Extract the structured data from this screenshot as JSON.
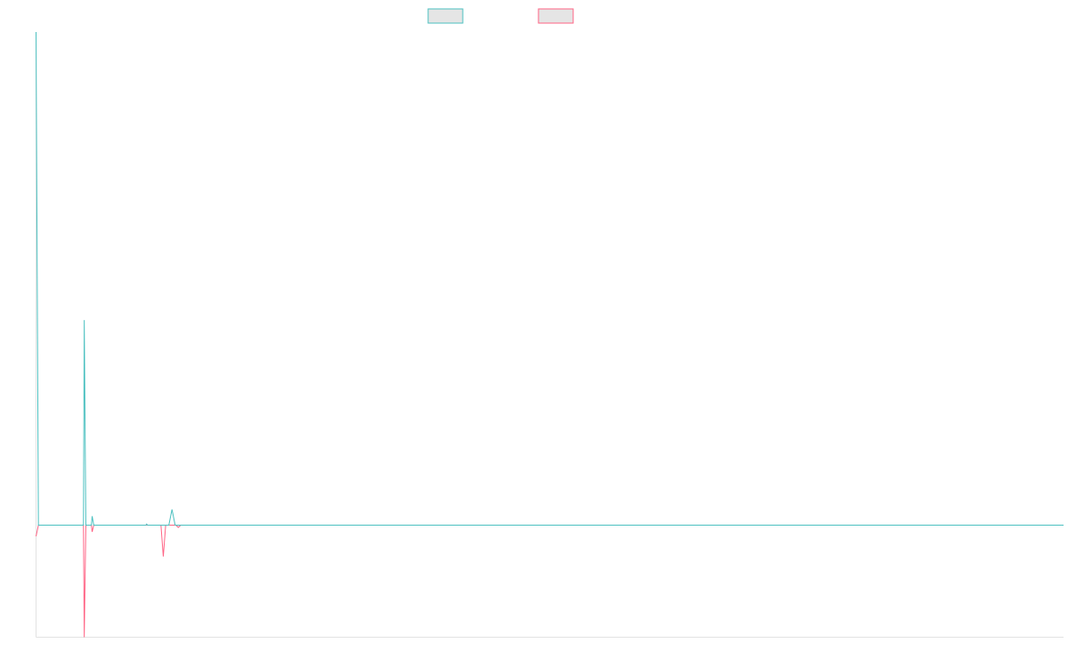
{
  "colors": {
    "series_a": "#4bc0c0",
    "series_b": "#ff6384",
    "legend_fill": "#e5e5e5",
    "axis": "#e2e2e2",
    "background": "#ffffff"
  },
  "legend": {
    "placement": "top-center",
    "entries": [
      {
        "label": "",
        "color": "#4bc0c0"
      },
      {
        "label": "",
        "color": "#ff6384"
      }
    ]
  },
  "chart_data": {
    "type": "line",
    "title": "",
    "xlabel": "",
    "ylabel": "",
    "grid": false,
    "xlim": [
      0,
      130
    ],
    "ylim": [
      -10,
      44
    ],
    "series": [
      {
        "color": "#4bc0c0",
        "points": [
          [
            0,
            44
          ],
          [
            0.3,
            0
          ],
          [
            6,
            0
          ],
          [
            6.1,
            18.3
          ],
          [
            6.3,
            0
          ],
          [
            7,
            0
          ],
          [
            7.1,
            0.8
          ],
          [
            7.3,
            0
          ],
          [
            13.9,
            0
          ],
          [
            14,
            0.1
          ],
          [
            14.1,
            0
          ],
          [
            16.8,
            0
          ],
          [
            17.2,
            1.4
          ],
          [
            17.6,
            0
          ],
          [
            130,
            0
          ]
        ]
      },
      {
        "color": "#ff6384",
        "points": [
          [
            0,
            -1
          ],
          [
            0.3,
            0
          ],
          [
            6,
            0
          ],
          [
            6.1,
            -10
          ],
          [
            6.3,
            0
          ],
          [
            7,
            0
          ],
          [
            7.1,
            -0.6
          ],
          [
            7.3,
            0
          ],
          [
            15.8,
            0
          ],
          [
            16.1,
            -2.8
          ],
          [
            16.4,
            0
          ],
          [
            17.7,
            0
          ],
          [
            18,
            -0.2
          ],
          [
            18.3,
            0
          ],
          [
            130,
            0
          ]
        ]
      }
    ]
  }
}
